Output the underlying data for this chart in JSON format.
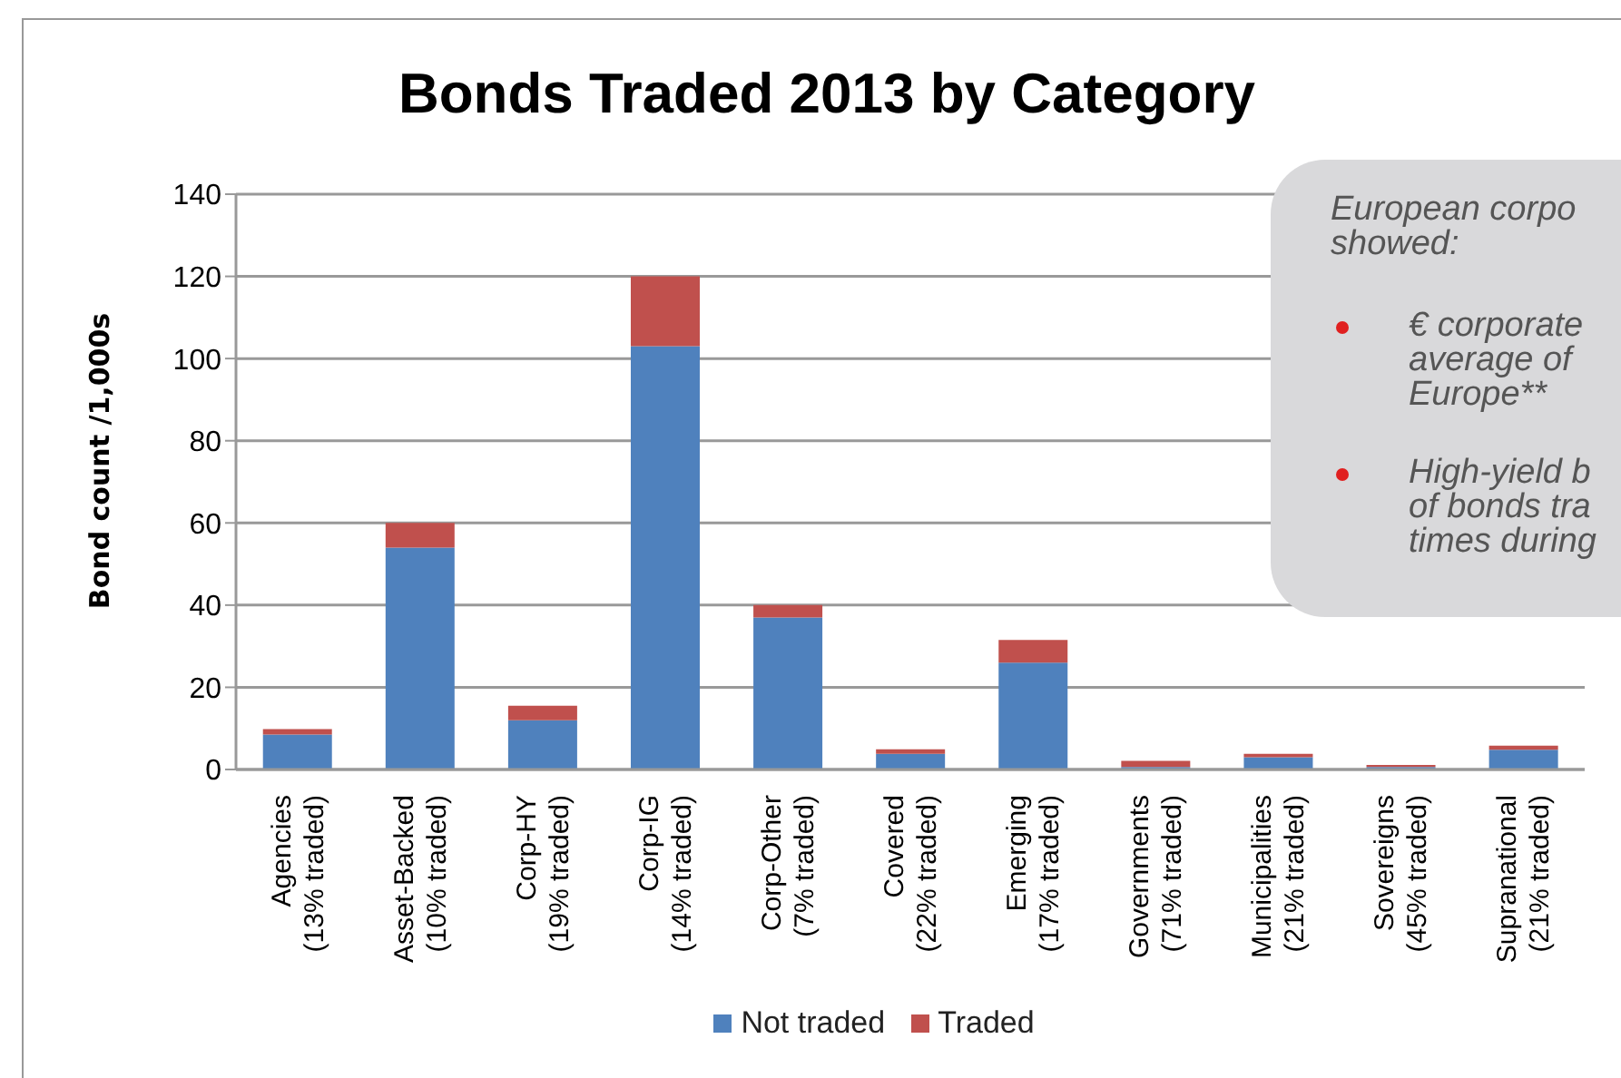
{
  "chart_data": {
    "type": "bar",
    "title": "Bonds Traded 2013 by Category",
    "ylabel": "Bond count /1,000s",
    "categories": [
      "Agencies\n(13% traded)",
      "Asset-Backed\n(10% traded)",
      "Corp-HY\n(19% traded)",
      "Corp-IG\n(14% traded)",
      "Corp-Other\n(7% traded)",
      "Covered\n(22% traded)",
      "Emerging\n(17% traded)",
      "Governments\n(71% traded)",
      "Municipalities\n(21% traded)",
      "Sovereigns\n(45% traded)",
      "Supranational\n(21% traded)"
    ],
    "series": [
      {
        "name": "Not traded",
        "color": "#4f81bd",
        "values": [
          8.5,
          54,
          12,
          103,
          37,
          3.8,
          26,
          0.6,
          3,
          0.6,
          4.8
        ]
      },
      {
        "name": "Traded",
        "color": "#c0504d",
        "values": [
          1.3,
          6,
          3.5,
          17,
          3,
          1.1,
          5.5,
          1.5,
          0.8,
          0.5,
          1
        ]
      }
    ],
    "stacked": true,
    "ylim": [
      0,
      140
    ],
    "yticks": [
      0,
      20,
      40,
      60,
      80,
      100,
      120,
      140
    ],
    "grid": "y",
    "legend": "bottom",
    "annotations": [
      "European corpo showed:",
      "€ corporate average of Europe**",
      "High-yield b of bonds tra times during"
    ]
  }
}
